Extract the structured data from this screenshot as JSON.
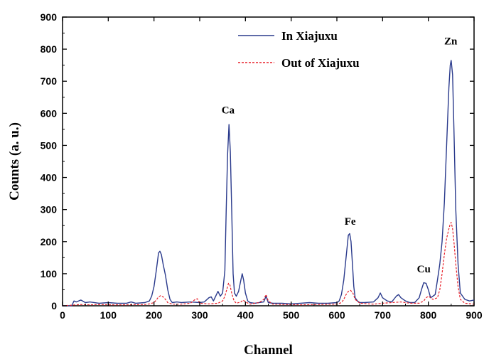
{
  "chart_data": {
    "type": "line",
    "xlabel": "Channel",
    "ylabel": "Counts (a. u.)",
    "xlim": [
      0,
      900
    ],
    "ylim": [
      0,
      900
    ],
    "xticks": [
      0,
      100,
      200,
      300,
      400,
      500,
      600,
      700,
      800,
      900
    ],
    "yticks": [
      0,
      100,
      200,
      300,
      400,
      500,
      600,
      700,
      800,
      900
    ],
    "grid": false,
    "legend_position": "top-center",
    "series": [
      {
        "name": "In Xiajuxu",
        "color": "#2a3a8c",
        "style": "solid",
        "x": [
          0,
          20,
          25,
          30,
          40,
          50,
          60,
          80,
          100,
          120,
          140,
          150,
          160,
          180,
          190,
          195,
          200,
          205,
          210,
          213,
          216,
          220,
          225,
          230,
          235,
          240,
          250,
          260,
          280,
          300,
          310,
          320,
          325,
          330,
          340,
          345,
          350,
          355,
          358,
          361,
          364,
          367,
          370,
          373,
          376,
          380,
          385,
          390,
          393,
          396,
          400,
          405,
          410,
          420,
          440,
          445,
          450,
          460,
          480,
          500,
          520,
          540,
          560,
          580,
          600,
          605,
          610,
          615,
          620,
          625,
          628,
          631,
          634,
          637,
          640,
          645,
          650,
          660,
          680,
          690,
          695,
          700,
          710,
          720,
          730,
          735,
          740,
          750,
          760,
          770,
          780,
          785,
          790,
          795,
          800,
          805,
          810,
          815,
          820,
          825,
          830,
          835,
          840,
          845,
          848,
          850,
          853,
          856,
          860,
          865,
          870,
          880,
          890,
          900
        ],
        "y": [
          0,
          0,
          15,
          12,
          18,
          10,
          12,
          8,
          10,
          8,
          8,
          12,
          8,
          10,
          15,
          30,
          60,
          110,
          165,
          170,
          160,
          130,
          95,
          50,
          20,
          10,
          12,
          10,
          12,
          10,
          12,
          25,
          28,
          15,
          45,
          30,
          40,
          110,
          300,
          470,
          565,
          480,
          300,
          100,
          40,
          30,
          45,
          80,
          100,
          80,
          40,
          15,
          10,
          8,
          12,
          30,
          10,
          8,
          8,
          6,
          8,
          10,
          8,
          8,
          10,
          15,
          35,
          80,
          150,
          220,
          225,
          200,
          130,
          60,
          25,
          15,
          10,
          10,
          12,
          25,
          40,
          25,
          15,
          12,
          30,
          35,
          25,
          15,
          10,
          10,
          25,
          50,
          72,
          70,
          50,
          25,
          30,
          35,
          80,
          130,
          200,
          320,
          500,
          680,
          750,
          765,
          720,
          550,
          300,
          130,
          40,
          20,
          15,
          18
        ]
      },
      {
        "name": "Out of Xiajuxu",
        "color": "#e8202a",
        "style": "dashed",
        "x": [
          0,
          20,
          40,
          60,
          80,
          100,
          140,
          180,
          190,
          200,
          205,
          210,
          215,
          220,
          225,
          230,
          240,
          260,
          280,
          290,
          295,
          300,
          320,
          340,
          350,
          355,
          360,
          363,
          366,
          370,
          375,
          380,
          390,
          395,
          400,
          410,
          420,
          430,
          440,
          445,
          450,
          460,
          480,
          520,
          560,
          600,
          610,
          615,
          620,
          625,
          630,
          635,
          640,
          650,
          680,
          700,
          720,
          740,
          760,
          780,
          790,
          795,
          800,
          810,
          820,
          825,
          830,
          835,
          840,
          845,
          848,
          850,
          853,
          856,
          860,
          865,
          870,
          880,
          900
        ],
        "y": [
          0,
          2,
          4,
          3,
          4,
          3,
          3,
          4,
          6,
          10,
          18,
          28,
          32,
          28,
          20,
          10,
          5,
          5,
          8,
          20,
          22,
          8,
          6,
          8,
          15,
          30,
          55,
          70,
          65,
          40,
          15,
          8,
          12,
          18,
          12,
          5,
          8,
          10,
          20,
          35,
          15,
          5,
          4,
          3,
          4,
          5,
          10,
          20,
          35,
          45,
          48,
          40,
          20,
          8,
          5,
          8,
          10,
          12,
          8,
          8,
          15,
          25,
          30,
          20,
          25,
          50,
          100,
          160,
          210,
          240,
          255,
          260,
          240,
          200,
          130,
          60,
          20,
          8,
          5
        ]
      }
    ],
    "annotations": [
      {
        "text": "Ca",
        "x": 362,
        "y": 600
      },
      {
        "text": "Fe",
        "x": 629,
        "y": 253
      },
      {
        "text": "Cu",
        "x": 790,
        "y": 104
      },
      {
        "text": "Zn",
        "x": 849,
        "y": 815
      }
    ]
  }
}
